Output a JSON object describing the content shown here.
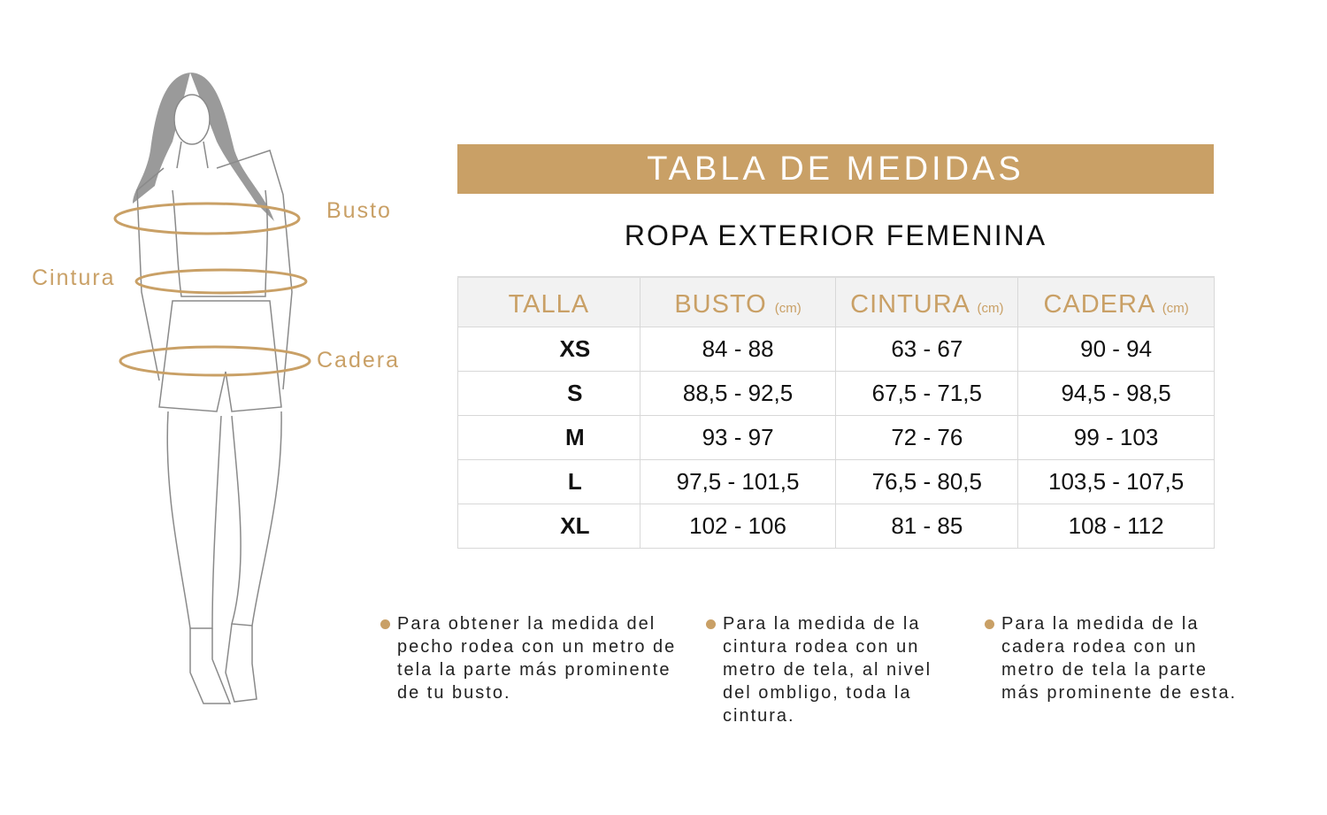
{
  "title": "TABLA DE MEDIDAS",
  "subtitle": "ROPA EXTERIOR FEMENINA",
  "accent_color": "#c9a066",
  "figure": {
    "labels": {
      "busto": "Busto",
      "cintura": "Cintura",
      "cadera": "Cadera"
    }
  },
  "table": {
    "unit": "(cm)",
    "headers": [
      "TALLA",
      "BUSTO",
      "CINTURA",
      "CADERA"
    ],
    "rows": [
      [
        "XS",
        "84 - 88",
        "63 -  67",
        "90 - 94"
      ],
      [
        "S",
        "88,5 - 92,5",
        "67,5 -  71,5",
        "94,5 - 98,5"
      ],
      [
        "M",
        "93 - 97",
        "72 - 76",
        "99 - 103"
      ],
      [
        "L",
        "97,5 - 101,5",
        "76,5 - 80,5",
        "103,5 - 107,5"
      ],
      [
        "XL",
        "102 - 106",
        "81 - 85",
        "108 - 112"
      ]
    ]
  },
  "notes": [
    "Para obtener la medida del pecho rodea con un metro de tela la parte más prominente de tu busto.",
    "Para la medida de la cintura rodea con un metro de tela, al nivel del ombligo, toda la cintura.",
    "Para la medida de la cadera rodea con un metro de tela la parte más prominente de esta."
  ]
}
